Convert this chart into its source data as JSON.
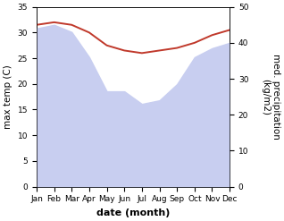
{
  "months": [
    "Jan",
    "Feb",
    "Mar",
    "Apr",
    "May",
    "Jun",
    "Jul",
    "Aug",
    "Sep",
    "Oct",
    "Nov",
    "Dec"
  ],
  "x": [
    0,
    1,
    2,
    3,
    4,
    5,
    6,
    7,
    8,
    9,
    10,
    11
  ],
  "temperature": [
    31.5,
    32.0,
    31.5,
    30.0,
    27.5,
    26.5,
    26.0,
    26.5,
    27.0,
    28.0,
    29.5,
    30.5
  ],
  "precipitation": [
    44.0,
    45.0,
    43.0,
    36.0,
    26.5,
    26.5,
    23.0,
    24.0,
    28.5,
    36.0,
    38.5,
    40.0
  ],
  "temp_color": "#c0392b",
  "precip_fill_color": "#c8cef0",
  "precip_edge_color": "#c8cef0",
  "background_color": "#ffffff",
  "xlabel": "date (month)",
  "ylabel_left": "max temp (C)",
  "ylabel_right": "med. precipitation\n(kg/m2)",
  "ylim_left": [
    0,
    35
  ],
  "ylim_right": [
    0,
    50
  ],
  "yticks_left": [
    0,
    5,
    10,
    15,
    20,
    25,
    30,
    35
  ],
  "yticks_right": [
    0,
    10,
    20,
    30,
    40,
    50
  ],
  "label_fontsize": 7.5,
  "tick_fontsize": 6.5,
  "xlabel_fontsize": 8,
  "linewidth_temp": 1.4,
  "grid_color": "#e0e0e0"
}
